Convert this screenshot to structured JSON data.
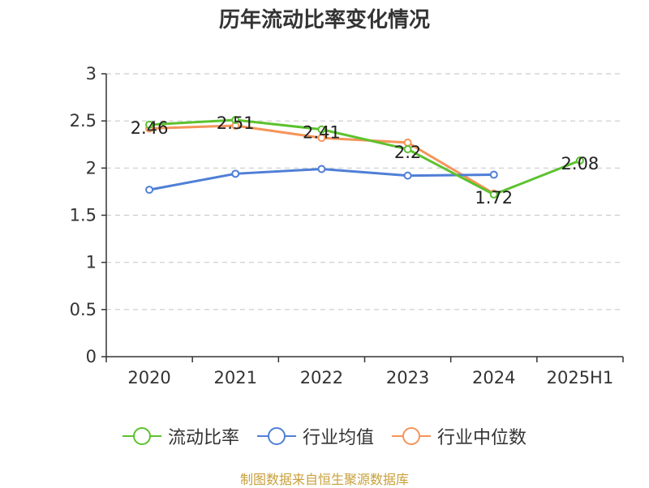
{
  "footer": "制图数据来自恒生聚源数据库",
  "chart_data": {
    "type": "line",
    "title": "历年流动比率变化情况",
    "categories": [
      "2020",
      "2021",
      "2022",
      "2023",
      "2024",
      "2025H1"
    ],
    "ylim": [
      0,
      3
    ],
    "yticks": [
      "0",
      "0.5",
      "1",
      "1.5",
      "2",
      "2.5",
      "3"
    ],
    "grid": true,
    "legend_position": "bottom",
    "series": [
      {
        "name": "流动比率",
        "color": "#5cc22e",
        "show_labels": true,
        "values": [
          2.46,
          2.51,
          2.41,
          2.2,
          1.72,
          2.08
        ],
        "labels": [
          "2.46",
          "2.51",
          "2.41",
          "2.2",
          "1.72",
          "2.08"
        ]
      },
      {
        "name": "行业均值",
        "color": "#4f7fd6",
        "show_labels": false,
        "values": [
          1.77,
          1.94,
          1.99,
          1.92,
          1.93,
          null
        ]
      },
      {
        "name": "行业中位数",
        "color": "#f5945a",
        "show_labels": false,
        "values": [
          2.42,
          2.45,
          2.32,
          2.27,
          1.73,
          null
        ]
      }
    ]
  }
}
